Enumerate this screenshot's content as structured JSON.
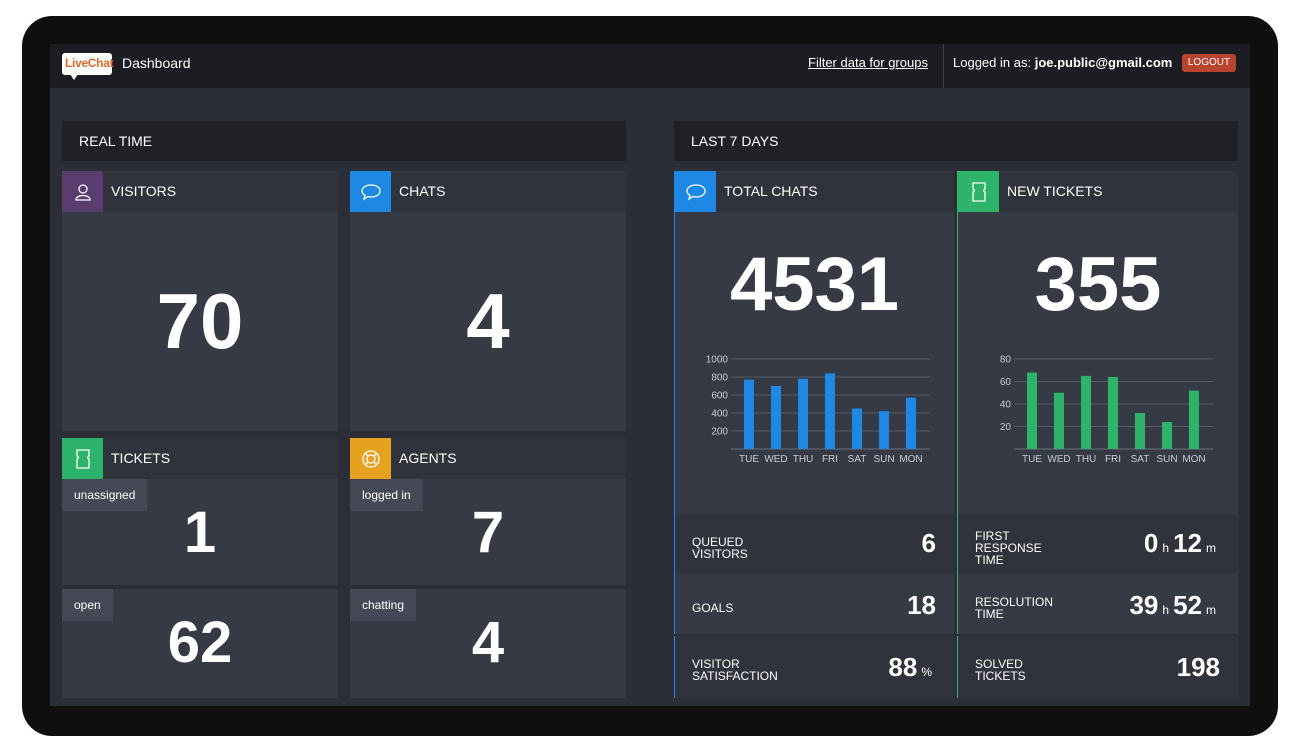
{
  "header": {
    "logo_text": "LiveChat",
    "title": "Dashboard",
    "filter_link": "Filter data for groups",
    "login_prefix": "Logged in as:",
    "login_email": "joe.public@gmail.com",
    "logout_label": "LOGOUT"
  },
  "colors": {
    "visitors": "#5a3c6e",
    "chats": "#1e88e5",
    "tickets": "#2eb36a",
    "agents": "#e6a21f",
    "total_chats_bar": "#1e88e5",
    "new_tickets_bar": "#2eb36a"
  },
  "realtime": {
    "title": "REAL TIME",
    "visitors": {
      "title": "VISITORS",
      "icon": "user-icon",
      "value": "70"
    },
    "chats": {
      "title": "CHATS",
      "icon": "speech-bubble-icon",
      "value": "4"
    },
    "tickets": {
      "title": "TICKETS",
      "icon": "ticket-icon",
      "unassigned_label": "unassigned",
      "unassigned_value": "1",
      "open_label": "open",
      "open_value": "62"
    },
    "agents": {
      "title": "AGENTS",
      "icon": "lifebuoy-icon",
      "logged_in_label": "logged in",
      "logged_in_value": "7",
      "chatting_label": "chatting",
      "chatting_value": "4"
    }
  },
  "last7": {
    "title": "LAST 7 DAYS",
    "total_chats": {
      "title": "TOTAL CHATS",
      "icon": "speech-bubble-icon",
      "value": "4531",
      "stats": {
        "queued_label": "QUEUED VISITORS",
        "queued_value": "6",
        "goals_label": "GOALS",
        "goals_value": "18",
        "satisfaction_label": "VISITOR SATISFACTION",
        "satisfaction_value": "88",
        "satisfaction_unit": "%"
      }
    },
    "new_tickets": {
      "title": "NEW TICKETS",
      "icon": "ticket-icon",
      "value": "355",
      "stats": {
        "first_response_label": "FIRST RESPONSE TIME",
        "first_response_h": "0",
        "first_response_m": "12",
        "resolution_label": "RESOLUTION TIME",
        "resolution_h": "39",
        "resolution_m": "52",
        "solved_label": "SOLVED TICKETS",
        "solved_value": "198",
        "unit_h": "h",
        "unit_m": "m"
      }
    }
  },
  "chart_data": [
    {
      "type": "bar",
      "categories": [
        "TUE",
        "WED",
        "THU",
        "FRI",
        "SAT",
        "SUN",
        "MON"
      ],
      "values": [
        770,
        700,
        780,
        840,
        450,
        420,
        570
      ],
      "yticks": [
        200,
        400,
        600,
        800,
        1000
      ],
      "ylim": [
        0,
        1000
      ],
      "grid": true
    },
    {
      "type": "bar",
      "categories": [
        "TUE",
        "WED",
        "THU",
        "FRI",
        "SAT",
        "SUN",
        "MON"
      ],
      "values": [
        68,
        50,
        65,
        64,
        32,
        24,
        52
      ],
      "yticks": [
        20,
        40,
        60,
        80
      ],
      "ylim": [
        0,
        80
      ],
      "grid": true
    }
  ]
}
